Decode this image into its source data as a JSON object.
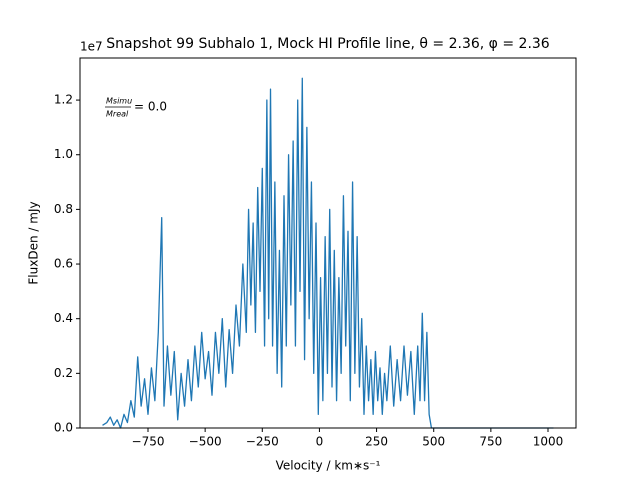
{
  "chart_data": {
    "type": "line",
    "title": "Snapshot 99 Subhalo 1, Mock HI Profile line, θ = 2.36, φ = 2.36",
    "x_label": "Velocity / km∗s⁻¹",
    "y_label": "FluxDen / mJy",
    "y_offset_text": "1e7",
    "annotation": {
      "numerator": "Msimu",
      "denominator": "Mreal",
      "text": "= 0.0"
    },
    "color": "#1f77b4",
    "xlim": [
      -1047.5,
      1122.5
    ],
    "ylim": [
      0,
      1.354
    ],
    "xticks": [
      {
        "value": -750,
        "label": "−750"
      },
      {
        "value": -500,
        "label": "−500"
      },
      {
        "value": -250,
        "label": "−250"
      },
      0,
      250,
      500,
      750,
      1000
    ],
    "yticks": [
      {
        "value": 0,
        "label": "0.0"
      },
      0.2,
      0.4,
      0.6,
      0.8,
      {
        "value": 1,
        "label": "1.0"
      },
      1.2
    ],
    "x": [
      -949,
      -930,
      -915,
      -900,
      -885,
      -870,
      -855,
      -840,
      -825,
      -810,
      -795,
      -780,
      -765,
      -750,
      -735,
      -720,
      -705,
      -690,
      -680,
      -665,
      -650,
      -635,
      -620,
      -605,
      -590,
      -575,
      -560,
      -545,
      -530,
      -515,
      -500,
      -485,
      -470,
      -455,
      -440,
      -425,
      -410,
      -395,
      -380,
      -365,
      -350,
      -335,
      -320,
      -310,
      -300,
      -290,
      -280,
      -270,
      -260,
      -250,
      -240,
      -230,
      -222,
      -214,
      -205,
      -195,
      -185,
      -175,
      -165,
      -155,
      -145,
      -135,
      -125,
      -115,
      -105,
      -95,
      -85,
      -75,
      -65,
      -55,
      -45,
      -35,
      -25,
      -15,
      -5,
      5,
      15,
      25,
      35,
      45,
      55,
      65,
      75,
      85,
      95,
      105,
      115,
      125,
      135,
      145,
      155,
      165,
      175,
      185,
      195,
      205,
      215,
      225,
      235,
      245,
      255,
      265,
      275,
      285,
      295,
      310,
      325,
      340,
      355,
      370,
      385,
      400,
      415,
      430,
      440,
      450,
      460,
      470,
      480,
      490,
      1024
    ],
    "values": [
      0.01,
      0.02,
      0.04,
      0.01,
      0.03,
      0.0,
      0.05,
      0.02,
      0.1,
      0.04,
      0.26,
      0.08,
      0.18,
      0.05,
      0.22,
      0.1,
      0.35,
      0.77,
      0.08,
      0.3,
      0.12,
      0.28,
      0.03,
      0.2,
      0.08,
      0.25,
      0.1,
      0.3,
      0.15,
      0.35,
      0.18,
      0.28,
      0.12,
      0.35,
      0.2,
      0.4,
      0.15,
      0.36,
      0.2,
      0.45,
      0.3,
      0.6,
      0.35,
      0.8,
      0.45,
      0.75,
      0.35,
      0.88,
      0.5,
      0.95,
      0.3,
      1.2,
      0.4,
      1.24,
      0.3,
      0.9,
      0.2,
      0.65,
      0.15,
      0.85,
      0.3,
      1.0,
      0.45,
      1.05,
      0.3,
      1.2,
      0.5,
      1.28,
      0.25,
      1.1,
      0.4,
      0.9,
      0.2,
      0.75,
      0.05,
      0.55,
      0.1,
      0.7,
      0.2,
      0.8,
      0.15,
      0.65,
      0.1,
      0.55,
      0.2,
      0.85,
      0.3,
      0.72,
      0.1,
      0.9,
      0.2,
      0.7,
      0.15,
      0.4,
      0.05,
      0.3,
      0.1,
      0.25,
      0.05,
      0.28,
      0.1,
      0.22,
      0.05,
      0.2,
      0.1,
      0.3,
      0.08,
      0.25,
      0.1,
      0.3,
      0.12,
      0.28,
      0.05,
      0.3,
      0.1,
      0.42,
      0.1,
      0.35,
      0.05,
      0.0,
      0.0
    ]
  }
}
